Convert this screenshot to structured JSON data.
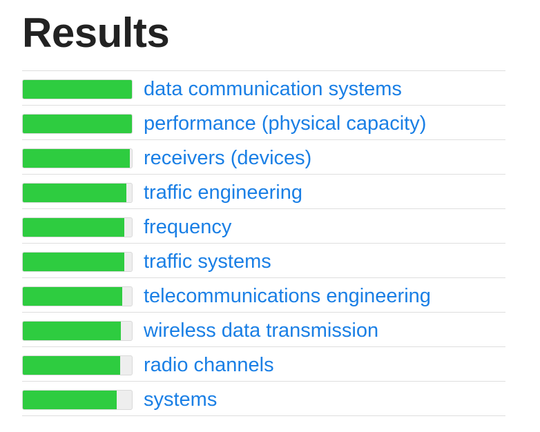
{
  "title": "Results",
  "colors": {
    "bar_fill": "#2ecc40",
    "bar_track": "#eeeeee",
    "link": "#1a7fe5",
    "title": "#222222",
    "divider": "#dedede"
  },
  "results": [
    {
      "label": "data communication systems",
      "score": 1.0
    },
    {
      "label": "performance (physical capacity)",
      "score": 1.0
    },
    {
      "label": "receivers (devices)",
      "score": 0.98
    },
    {
      "label": "traffic engineering",
      "score": 0.95
    },
    {
      "label": "frequency",
      "score": 0.93
    },
    {
      "label": "traffic systems",
      "score": 0.93
    },
    {
      "label": "telecommunications engineering",
      "score": 0.91
    },
    {
      "label": "wireless data transmission",
      "score": 0.9
    },
    {
      "label": "radio channels",
      "score": 0.89
    },
    {
      "label": "systems",
      "score": 0.86
    }
  ]
}
